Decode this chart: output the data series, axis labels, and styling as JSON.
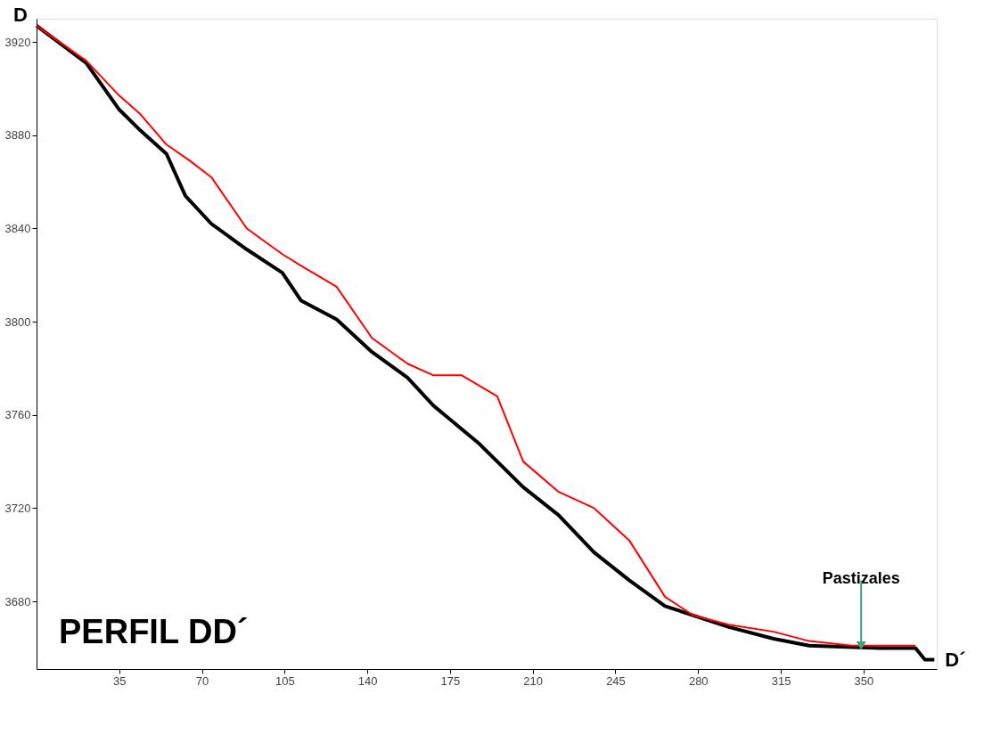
{
  "chart_data": {
    "type": "line",
    "title": "PERFIL DD´",
    "xlim": [
      0,
      381
    ],
    "ylim": [
      3651,
      3930
    ],
    "xticks": [
      35,
      70,
      105,
      140,
      175,
      210,
      245,
      280,
      315,
      350
    ],
    "yticks": [
      3680,
      3720,
      3760,
      3800,
      3840,
      3880,
      3920
    ],
    "grid": false,
    "series": [
      {
        "color": "#000000",
        "x": [
          0,
          21,
          35,
          44,
          55,
          63,
          74,
          89,
          104,
          112,
          127,
          142,
          157,
          168,
          187,
          206,
          221,
          236,
          251,
          266,
          278,
          293,
          312,
          327,
          357,
          372,
          376,
          380
        ],
        "values": [
          3927,
          3911,
          3891,
          3882,
          3872,
          3854,
          3842,
          3831,
          3821,
          3809,
          3801,
          3787,
          3776,
          3764,
          3748,
          3729,
          3717,
          3701,
          3689,
          3678,
          3674,
          3669,
          3664,
          3661,
          3660,
          3660,
          3655,
          3655
        ]
      },
      {
        "color": "#ff0000",
        "x": [
          0,
          21,
          35,
          44,
          55,
          65,
          74,
          89,
          104,
          112,
          127,
          142,
          157,
          168,
          180,
          195,
          206,
          221,
          236,
          251,
          266,
          278,
          293,
          312,
          327,
          345,
          372
        ],
        "values": [
          3927,
          3912,
          3897,
          3889,
          3876,
          3869,
          3862,
          3840,
          3829,
          3824,
          3815,
          3793,
          3782,
          3777,
          3777,
          3768,
          3740,
          3727,
          3720,
          3706,
          3682,
          3674,
          3670,
          3667,
          3663,
          3661,
          3661
        ]
      }
    ],
    "annotations": [
      {
        "text": "D",
        "x": 0,
        "y": 3927
      },
      {
        "text": "D´",
        "x": 380,
        "y": 3655
      },
      {
        "text": "Pastizales",
        "x": 349,
        "y": 3661
      }
    ]
  }
}
